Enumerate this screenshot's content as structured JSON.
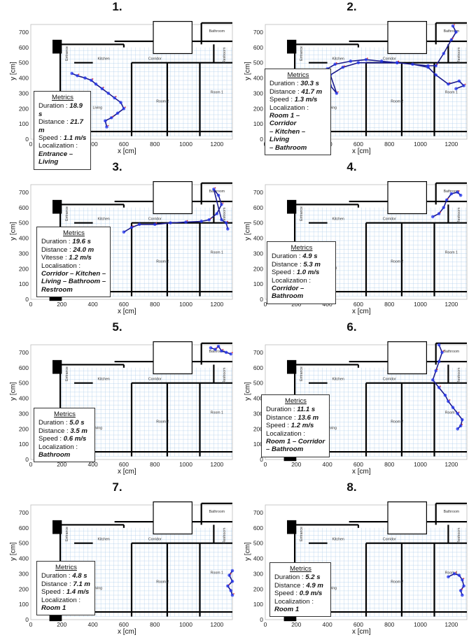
{
  "axes": {
    "ylabel": "y [cm]",
    "xlabel": "x [cm]",
    "xticks": [
      "0",
      "200",
      "400",
      "600",
      "800",
      "1000",
      "1200"
    ],
    "yticks": [
      "0",
      "100",
      "200",
      "300",
      "400",
      "500",
      "600",
      "700"
    ]
  },
  "rooms": {
    "bathroom": "Bathroom",
    "kitchen": "Kitchen",
    "corridor": "Corridor",
    "restroom": "Restroom",
    "entrance": "Entrance",
    "room2": "Room 2",
    "room1": "Room 1",
    "living": "Living"
  },
  "metrics_title": "Metrics",
  "colors": {
    "trajectory": "#1a1a8c",
    "points": "#2233ee",
    "markers": "#e03030",
    "walls": "#000000",
    "grid": "#9ec3e6"
  },
  "panels": [
    {
      "num": "1.",
      "title": "Metrics",
      "lines": [
        [
          "Duration : ",
          "18.9 s"
        ],
        [
          "Distance : ",
          "21.7 m"
        ],
        [
          "Speed : ",
          "1.1 m/s"
        ]
      ],
      "loc_label": "Localization :",
      "loc": [
        "Entrance – Living"
      ],
      "path": [
        [
          265,
          430
        ],
        [
          300,
          415
        ],
        [
          350,
          400
        ],
        [
          390,
          385
        ],
        [
          420,
          360
        ],
        [
          460,
          330
        ],
        [
          500,
          300
        ],
        [
          540,
          270
        ],
        [
          580,
          240
        ],
        [
          600,
          200
        ],
        [
          560,
          170
        ],
        [
          520,
          140
        ],
        [
          480,
          120
        ],
        [
          490,
          80
        ]
      ]
    },
    {
      "num": "2.",
      "title": "Metrics",
      "lines": [
        [
          "Duration : ",
          "30.3 s"
        ],
        [
          "Distance : ",
          "41.7 m"
        ],
        [
          "Speed : ",
          "1.3 m/s"
        ]
      ],
      "loc_label": "Localization :",
      "loc": [
        "Room 1 – Corridor",
        "– Kitchen – Living",
        "– Bathroom"
      ],
      "path": [
        [
          1230,
          330
        ],
        [
          1280,
          350
        ],
        [
          1250,
          380
        ],
        [
          1180,
          360
        ],
        [
          1100,
          420
        ],
        [
          1050,
          470
        ],
        [
          950,
          490
        ],
        [
          850,
          500
        ],
        [
          750,
          510
        ],
        [
          650,
          520
        ],
        [
          550,
          510
        ],
        [
          450,
          490
        ],
        [
          400,
          460
        ],
        [
          380,
          400
        ],
        [
          420,
          350
        ],
        [
          460,
          300
        ],
        [
          420,
          420
        ],
        [
          500,
          470
        ],
        [
          600,
          500
        ],
        [
          850,
          500
        ],
        [
          1050,
          480
        ],
        [
          1100,
          480
        ],
        [
          1150,
          560
        ],
        [
          1200,
          650
        ],
        [
          1230,
          700
        ],
        [
          1210,
          740
        ]
      ]
    },
    {
      "num": "3.",
      "title": "Metrics",
      "lines": [
        [
          "Duration : ",
          "19.6 s"
        ],
        [
          "Distance : ",
          "24.0 m"
        ],
        [
          "Vitesse : ",
          "1.2 m/s"
        ]
      ],
      "loc_label": "Localisation :",
      "loc": [
        "Corridor – Kitchen –",
        "Living – Bathroom –",
        "Restroom"
      ],
      "path": [
        [
          600,
          440
        ],
        [
          650,
          470
        ],
        [
          700,
          490
        ],
        [
          800,
          490
        ],
        [
          900,
          500
        ],
        [
          1000,
          505
        ],
        [
          1100,
          510
        ],
        [
          1150,
          520
        ],
        [
          1200,
          560
        ],
        [
          1230,
          620
        ],
        [
          1210,
          680
        ],
        [
          1180,
          720
        ],
        [
          1230,
          520
        ],
        [
          1260,
          500
        ],
        [
          1270,
          460
        ]
      ]
    },
    {
      "num": "4.",
      "title": "Metrics",
      "lines": [
        [
          "Duration : ",
          "4.9 s"
        ],
        [
          "Distance : ",
          "5.3 m"
        ],
        [
          "Speed : ",
          "1.0 m/s"
        ]
      ],
      "loc_label": "Localization :",
      "loc": [
        "Corridor – Bathroom"
      ],
      "path": [
        [
          1080,
          540
        ],
        [
          1120,
          560
        ],
        [
          1150,
          600
        ],
        [
          1170,
          650
        ],
        [
          1200,
          690
        ],
        [
          1240,
          700
        ],
        [
          1260,
          680
        ]
      ]
    },
    {
      "num": "5.",
      "title": "Metrics",
      "lines": [
        [
          "Duration : ",
          "5.0 s"
        ],
        [
          "Distance : ",
          "3.5 m"
        ],
        [
          "Speed : ",
          "0.6 m/s"
        ]
      ],
      "loc_label": "Localization :",
      "loc": [
        "Bathroom"
      ],
      "path": [
        [
          1160,
          730
        ],
        [
          1190,
          720
        ],
        [
          1210,
          740
        ],
        [
          1230,
          710
        ],
        [
          1260,
          700
        ],
        [
          1290,
          690
        ]
      ]
    },
    {
      "num": "6.",
      "title": "Metrics",
      "lines": [
        [
          "Duration : ",
          "11.1 s"
        ],
        [
          "Distance : ",
          "13.6 m"
        ],
        [
          "Speed : ",
          "1.2 m/s"
        ]
      ],
      "loc_label": "Localization :",
      "loc": [
        "Room 1 – Corridor",
        "– Bathroom"
      ],
      "path": [
        [
          1120,
          750
        ],
        [
          1140,
          700
        ],
        [
          1120,
          640
        ],
        [
          1100,
          580
        ],
        [
          1080,
          520
        ],
        [
          1120,
          470
        ],
        [
          1160,
          420
        ],
        [
          1180,
          380
        ],
        [
          1210,
          340
        ],
        [
          1240,
          300
        ],
        [
          1270,
          260
        ],
        [
          1260,
          220
        ],
        [
          1240,
          200
        ]
      ]
    },
    {
      "num": "7.",
      "title": "Metrics",
      "lines": [
        [
          "Duration : ",
          "4.8 s"
        ],
        [
          "Distance : ",
          "7.1 m"
        ],
        [
          "Speed : ",
          "1.4 m/s"
        ]
      ],
      "loc_label": "Localization :",
      "loc": [
        "Room 1"
      ],
      "path": [
        [
          1300,
          320
        ],
        [
          1280,
          290
        ],
        [
          1300,
          250
        ],
        [
          1270,
          220
        ],
        [
          1290,
          190
        ],
        [
          1300,
          160
        ]
      ]
    },
    {
      "num": "8.",
      "title": "Metrics",
      "lines": [
        [
          "Duration : ",
          "5.2 s"
        ],
        [
          "Distance : ",
          "4.9 m"
        ],
        [
          "Speed : ",
          "0.9 m/s"
        ]
      ],
      "loc_label": "Localization :",
      "loc": [
        "Room 1"
      ],
      "path": [
        [
          1180,
          280
        ],
        [
          1220,
          300
        ],
        [
          1250,
          290
        ],
        [
          1270,
          260
        ],
        [
          1280,
          220
        ],
        [
          1260,
          190
        ],
        [
          1270,
          160
        ]
      ]
    }
  ]
}
